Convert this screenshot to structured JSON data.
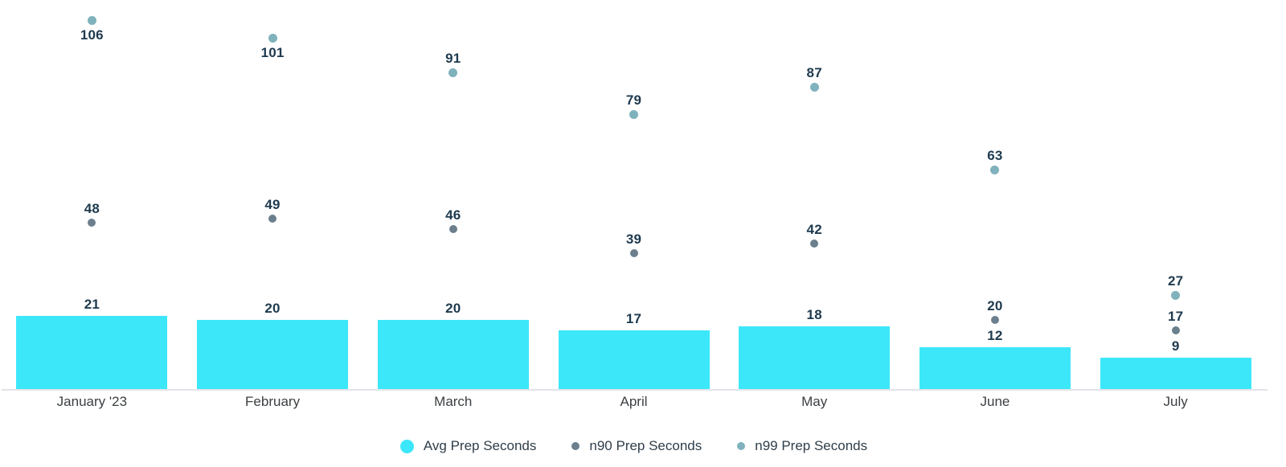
{
  "chart_data": {
    "type": "bar",
    "subtype": "bar-with-point-series",
    "categories": [
      "January '23",
      "February",
      "March",
      "April",
      "May",
      "June",
      "July"
    ],
    "series": [
      {
        "name": "Avg Prep Seconds",
        "type": "bar",
        "color": "#3de7fa",
        "legend_swatch": "large",
        "values": [
          21,
          20,
          20,
          17,
          18,
          12,
          9
        ]
      },
      {
        "name": "n90 Prep Seconds",
        "type": "point",
        "color": "#6b7f8d",
        "legend_swatch": "small",
        "values": [
          48,
          49,
          46,
          39,
          42,
          20,
          17
        ]
      },
      {
        "name": "n99 Prep Seconds",
        "type": "point",
        "color": "#7fb2bc",
        "legend_swatch": "small",
        "values": [
          106,
          101,
          91,
          79,
          87,
          63,
          27
        ]
      }
    ],
    "title": "",
    "xlabel": "",
    "ylabel": "",
    "ylim": [
      0,
      112
    ],
    "grid": false,
    "y_axis_visible": false,
    "value_labels": true,
    "legend_position": "bottom"
  },
  "colors": {
    "background": "#ffffff",
    "value_label": "#1e3a4e",
    "axis_label": "#3c4043",
    "legend_text": "#2f3e4a",
    "axis_line": "#e2e4e9"
  }
}
